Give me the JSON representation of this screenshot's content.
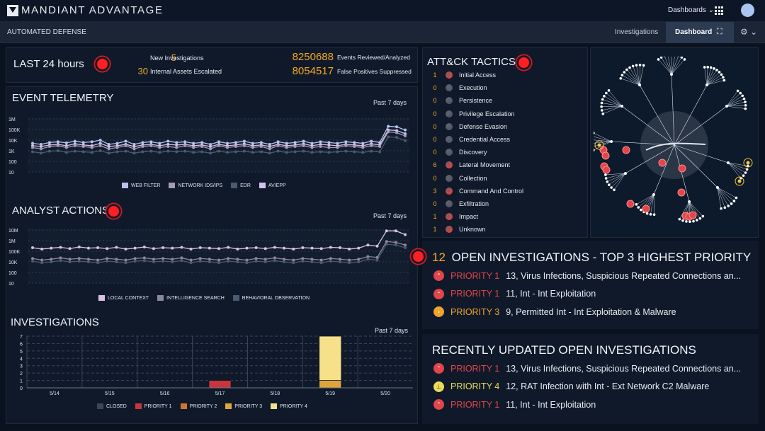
{
  "header": {
    "brand": "MANDIANT ADVANTAGE",
    "dashboards_menu": "Dashboards ⌄"
  },
  "subheader": {
    "title": "AUTOMATED DEFENSE",
    "nav_investigations": "Investigations",
    "nav_dashboard": "Dashboard",
    "gear_menu": "⚙ ⌄"
  },
  "last24": {
    "title": "LAST 24 hours",
    "stats": [
      {
        "value": "5",
        "label": "New Investigations"
      },
      {
        "value": "30",
        "label": "Internal Assets Escalated"
      },
      {
        "value": "8250688",
        "label": "Events Reviewed/Analyzed"
      },
      {
        "value": "8054517",
        "label": "False Positives Suppressed"
      }
    ]
  },
  "event_telemetry": {
    "title": "EVENT TELEMETRY",
    "range": "Past 7 days",
    "y_ticks": [
      "1M",
      "100K",
      "10K",
      "1K",
      "100",
      "10"
    ],
    "legend": [
      "WEB FILTER",
      "NETWORK IDS/IPS",
      "EDR",
      "AV/EPP"
    ],
    "colors": [
      "#b7c2ee",
      "#a89bb0",
      "#4a5a72",
      "#d6c0ef"
    ]
  },
  "analyst_actions": {
    "title": "ANALYST ACTIONS",
    "range": "Past 7 days",
    "y_ticks": [
      "10M",
      "1M",
      "100K",
      "10K",
      "100",
      "10"
    ],
    "legend": [
      "LOCAL CONTEXT",
      "INTELLIGENCE SEARCH",
      "BEHAVIORAL OBSERVATION"
    ],
    "colors": [
      "#dcc0e6",
      "#8e8797",
      "#4a5a72"
    ]
  },
  "investigations_chart": {
    "title": "INVESTIGATIONS",
    "range": "Past 7 days",
    "y_ticks": [
      "7",
      "6",
      "5",
      "4",
      "3",
      "2",
      "1",
      "0"
    ],
    "legend": [
      "CLOSED",
      "PRIORITY 1",
      "PRIORITY 2",
      "PRIORITY 3",
      "PRIORITY 4"
    ],
    "legend_colors": [
      "#3b4757",
      "#c8353a",
      "#d07530",
      "#e0a43a",
      "#f7e08a"
    ]
  },
  "chart_data": [
    {
      "type": "line",
      "title": "EVENT TELEMETRY",
      "y_scale": "log",
      "ylim": [
        10,
        1000000
      ],
      "series": [
        {
          "name": "WEB FILTER",
          "values": [
            5000,
            4000,
            6000,
            7000,
            5500,
            8000,
            6000,
            7000,
            10000,
            4000,
            5000,
            8000,
            4000,
            6000,
            7000,
            5000,
            8000,
            6000,
            7000,
            5000,
            6000,
            4000,
            7000,
            5000,
            6000,
            8000,
            5000,
            6000,
            4000,
            7000,
            5000,
            6000,
            8000,
            5000,
            7000,
            6000,
            5000,
            7000,
            6000,
            5000,
            8000,
            6000,
            200000,
            180000,
            90000
          ]
        },
        {
          "name": "NETWORK IDS/IPS",
          "values": [
            2000,
            1500,
            2500,
            3000,
            2000,
            3000,
            2500,
            2000,
            3000,
            1500,
            2000,
            3000,
            1500,
            2500,
            3000,
            2000,
            2500,
            2000,
            3000,
            2000,
            2500,
            1500,
            3000,
            2000,
            2500,
            3000,
            2000,
            2500,
            1500,
            3000,
            2000,
            2500,
            3000,
            2000,
            2500,
            2000,
            2000,
            3000,
            2500,
            2000,
            3000,
            2500,
            60000,
            50000,
            25000
          ]
        },
        {
          "name": "EDR",
          "values": [
            800,
            600,
            900,
            1000,
            700,
            900,
            800,
            700,
            1000,
            600,
            800,
            900,
            600,
            800,
            900,
            700,
            900,
            800,
            900,
            700,
            800,
            600,
            900,
            700,
            800,
            900,
            700,
            800,
            600,
            900,
            700,
            800,
            900,
            700,
            800,
            700,
            800,
            900,
            800,
            700,
            900,
            800,
            20000,
            18000,
            9000
          ]
        },
        {
          "name": "AV/EPP",
          "values": [
            3000,
            2500,
            3500,
            4000,
            3000,
            4500,
            3500,
            3000,
            5000,
            2500,
            3000,
            4000,
            2500,
            3500,
            4000,
            3000,
            4000,
            3500,
            4000,
            3000,
            3500,
            2500,
            4000,
            3000,
            3500,
            4500,
            3000,
            3500,
            2500,
            4000,
            3000,
            3500,
            4500,
            3000,
            4000,
            3500,
            3000,
            4000,
            3500,
            3000,
            4500,
            3500,
            90000,
            80000,
            40000
          ]
        }
      ]
    },
    {
      "type": "line",
      "title": "ANALYST ACTIONS",
      "y_scale": "log",
      "ylim": [
        10,
        10000000
      ],
      "series": [
        {
          "name": "LOCAL CONTEXT",
          "values": [
            100000,
            70000,
            90000,
            110000,
            80000,
            120000,
            90000,
            100000,
            80000,
            110000,
            70000,
            90000,
            120000,
            80000,
            100000,
            90000,
            110000,
            70000,
            100000,
            90000,
            80000,
            110000,
            70000,
            90000,
            100000,
            80000,
            110000,
            90000,
            70000,
            100000,
            90000,
            80000,
            110000,
            100000,
            70000,
            90000,
            200000,
            150000,
            8000000,
            8000000,
            3000000
          ]
        },
        {
          "name": "INTELLIGENCE SEARCH",
          "values": [
            6000,
            4000,
            5000,
            7000,
            5000,
            6000,
            5000,
            4000,
            6000,
            5000,
            4000,
            6000,
            7000,
            5000,
            6000,
            5000,
            7000,
            4000,
            6000,
            5000,
            4000,
            6000,
            5000,
            4000,
            6000,
            5000,
            7000,
            5000,
            4000,
            6000,
            5000,
            4000,
            6000,
            5000,
            4000,
            5000,
            10000,
            8000,
            500000,
            400000,
            200000
          ]
        },
        {
          "name": "BEHAVIORAL OBSERVATION",
          "values": [
            3000,
            2000,
            2500,
            3500,
            2500,
            3000,
            2500,
            2000,
            3000,
            2500,
            2000,
            3000,
            3500,
            2500,
            3000,
            2500,
            3500,
            2000,
            3000,
            2500,
            2000,
            3000,
            2500,
            2000,
            3000,
            2500,
            3500,
            2500,
            2000,
            3000,
            2500,
            2000,
            3000,
            2500,
            2000,
            2500,
            5000,
            4000,
            250000,
            200000,
            100000
          ]
        }
      ]
    },
    {
      "type": "bar",
      "title": "INVESTIGATIONS",
      "stacked": true,
      "ylim": [
        0,
        7
      ],
      "categories": [
        "5/14",
        "5/15",
        "5/16",
        "5/17",
        "5/18",
        "5/19",
        "5/20"
      ],
      "series": [
        {
          "name": "CLOSED",
          "values": [
            0,
            0,
            0,
            0,
            0,
            0,
            0
          ]
        },
        {
          "name": "PRIORITY 1",
          "values": [
            0,
            0,
            0,
            1,
            0,
            0,
            0
          ]
        },
        {
          "name": "PRIORITY 2",
          "values": [
            0,
            0,
            0,
            0,
            0,
            0,
            0
          ]
        },
        {
          "name": "PRIORITY 3",
          "values": [
            0,
            0,
            0,
            0,
            0,
            1,
            0
          ]
        },
        {
          "name": "PRIORITY 4",
          "values": [
            0,
            0,
            0,
            0,
            0,
            6,
            0
          ]
        }
      ]
    }
  ],
  "attck": {
    "title": "ATT&CK TACTICS",
    "tactics": [
      {
        "count": "1",
        "name": "Initial Access",
        "color": "#d4433f"
      },
      {
        "count": "0",
        "name": "Execution",
        "color": "#525866"
      },
      {
        "count": "0",
        "name": "Persistence",
        "color": "#525866"
      },
      {
        "count": "0",
        "name": "Privilege Escalation",
        "color": "#525866"
      },
      {
        "count": "0",
        "name": "Defense Evasion",
        "color": "#525866"
      },
      {
        "count": "0",
        "name": "Credential Access",
        "color": "#525866"
      },
      {
        "count": "0",
        "name": "Discovery",
        "color": "#525866"
      },
      {
        "count": "6",
        "name": "Lateral Movement",
        "color": "#d4433f"
      },
      {
        "count": "0",
        "name": "Collection",
        "color": "#525866"
      },
      {
        "count": "3",
        "name": "Command And Control",
        "color": "#d4433f"
      },
      {
        "count": "0",
        "name": "Exfiltration",
        "color": "#525866"
      },
      {
        "count": "1",
        "name": "Impact",
        "color": "#d4433f"
      },
      {
        "count": "1",
        "name": "Unknown",
        "color": "#d4433f"
      }
    ]
  },
  "open_investigations": {
    "count": "12",
    "title": "OPEN INVESTIGATIONS - TOP 3 HIGHEST PRIORITY",
    "items": [
      {
        "priority": "PRIORITY 1",
        "text": "13, Virus Infections, Suspicious Repeated Connections an...",
        "priority_color": "#e2454a",
        "badge": "⌃"
      },
      {
        "priority": "PRIORITY 1",
        "text": "11, Int - Int Exploitation",
        "priority_color": "#e2454a",
        "badge": "⌃"
      },
      {
        "priority": "PRIORITY 3",
        "text": "9, Permitted Int - Int Exploitation & Malware",
        "priority_color": "#f0a22d",
        "badge": "›"
      }
    ]
  },
  "recent_investigations": {
    "title": "RECENTLY UPDATED OPEN INVESTIGATIONS",
    "items": [
      {
        "priority": "PRIORITY 1",
        "text": "13, Virus Infections, Suspicious Repeated Connections an...",
        "priority_color": "#e2454a",
        "badge": "⌃"
      },
      {
        "priority": "PRIORITY 4",
        "text": "12, RAT Infection with Int - Ext Network C2 Malware",
        "priority_color": "#e8dc5a",
        "badge": "⊥"
      },
      {
        "priority": "PRIORITY 1",
        "text": "11, Int - Int Exploitation",
        "priority_color": "#e2454a",
        "badge": "⌃"
      }
    ]
  }
}
